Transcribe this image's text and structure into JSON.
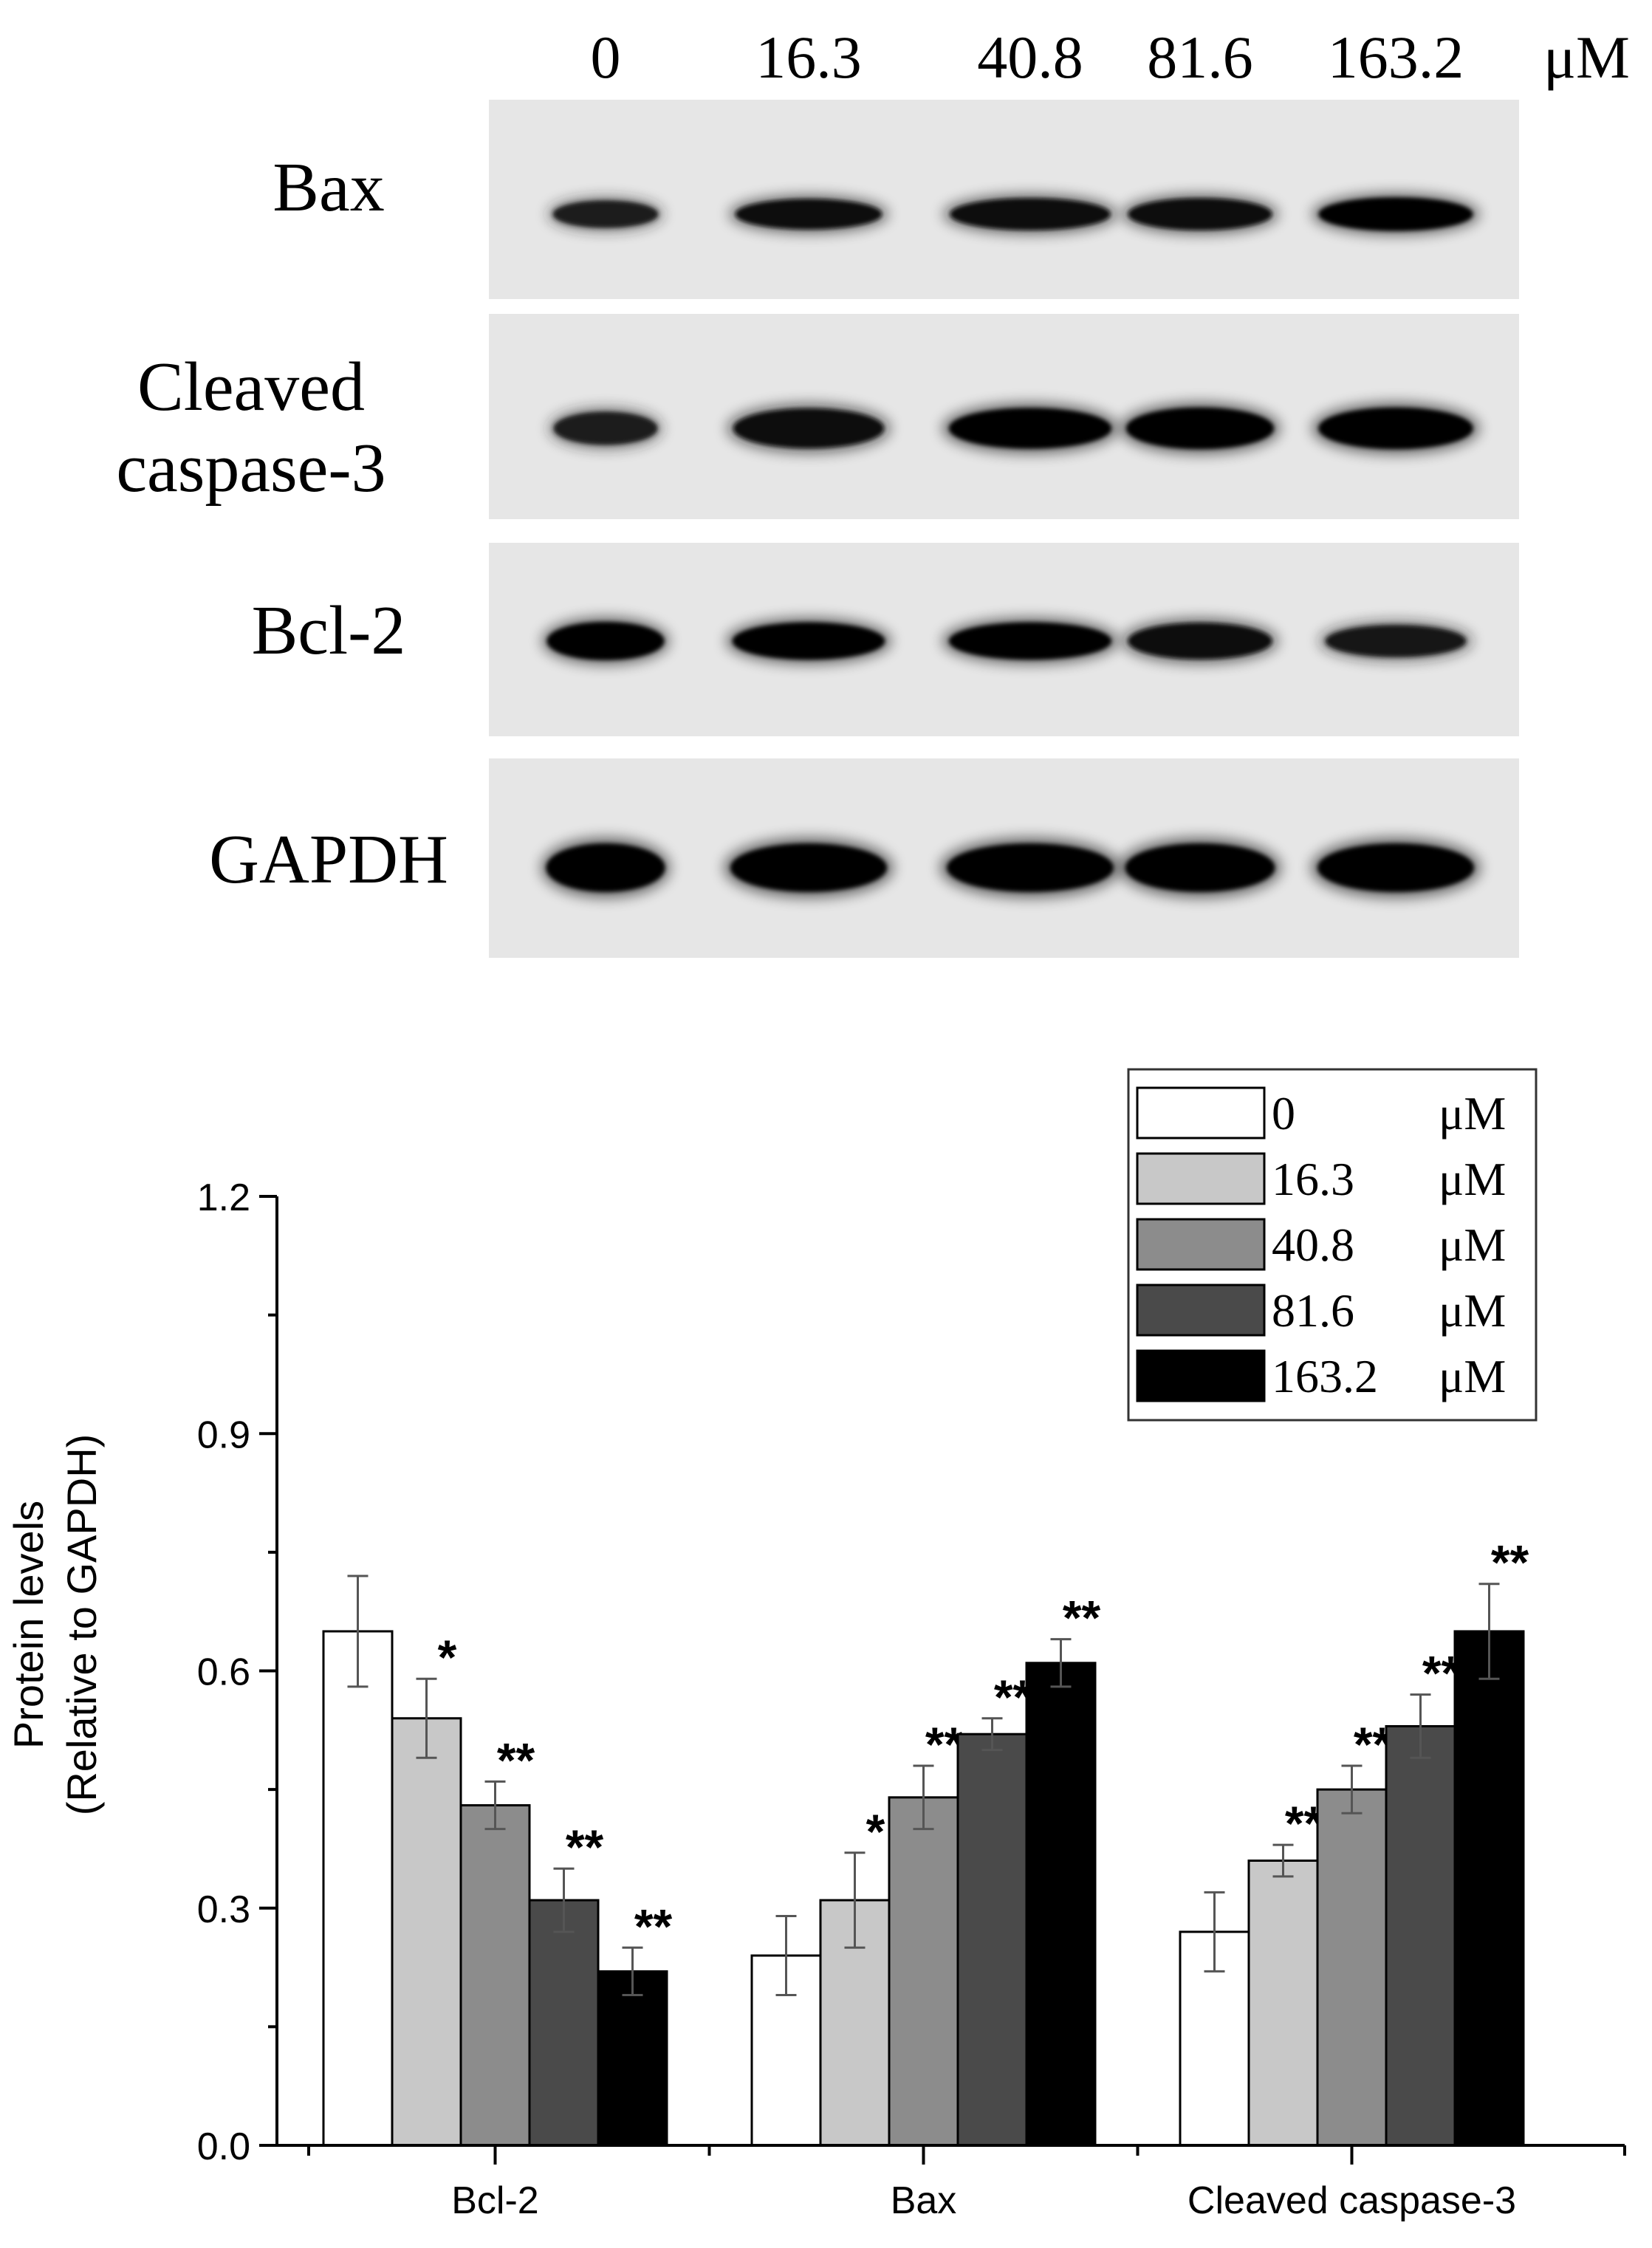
{
  "blot": {
    "doses": [
      "0",
      "16.3",
      "40.8",
      "81.6",
      "163.2"
    ],
    "unit": "μM",
    "rows": [
      {
        "label_lines": [
          "Bax"
        ],
        "band_intensity": [
          0.55,
          0.75,
          0.85,
          0.85,
          0.95
        ]
      },
      {
        "label_lines": [
          "Cleaved",
          "caspase-3"
        ],
        "band_intensity": [
          0.5,
          0.85,
          0.9,
          0.95,
          0.95
        ]
      },
      {
        "label_lines": [
          "Bcl-2"
        ],
        "band_intensity": [
          0.95,
          0.9,
          0.9,
          0.85,
          0.6
        ]
      },
      {
        "label_lines": [
          "GAPDH"
        ],
        "band_intensity": [
          1.0,
          1.0,
          1.0,
          1.0,
          1.0
        ]
      }
    ]
  },
  "chart_data": {
    "type": "bar",
    "title": "",
    "xlabel": "",
    "ylabel_lines": [
      "Protein levels",
      "(Relative to GAPDH)"
    ],
    "ylim": [
      0,
      1.2
    ],
    "yticks": [
      "0.0",
      "0.3",
      "0.6",
      "0.9",
      "1.2"
    ],
    "categories": [
      "Bcl-2",
      "Bax",
      "Cleaved caspase-3"
    ],
    "legend_position": "top-right",
    "grid": false,
    "series": [
      {
        "name": "0",
        "unit": "μM",
        "color": "#ffffff",
        "values": [
          0.65,
          0.24,
          0.27
        ],
        "errors": [
          0.07,
          0.05,
          0.05
        ],
        "significance": [
          "",
          "",
          ""
        ]
      },
      {
        "name": "16.3",
        "unit": "μM",
        "color": "#c8c8c8",
        "values": [
          0.54,
          0.31,
          0.36
        ],
        "errors": [
          0.05,
          0.06,
          0.02
        ],
        "significance": [
          "*",
          "*",
          "**"
        ]
      },
      {
        "name": "40.8",
        "unit": "μM",
        "color": "#8c8c8c",
        "values": [
          0.43,
          0.44,
          0.45
        ],
        "errors": [
          0.03,
          0.04,
          0.03
        ],
        "significance": [
          "**",
          "**",
          "**"
        ]
      },
      {
        "name": "81.6",
        "unit": "μM",
        "color": "#4a4a4a",
        "values": [
          0.31,
          0.52,
          0.53
        ],
        "errors": [
          0.04,
          0.02,
          0.04
        ],
        "significance": [
          "**",
          "**",
          "**"
        ]
      },
      {
        "name": "163.2",
        "unit": "μM",
        "color": "#000000",
        "values": [
          0.22,
          0.61,
          0.65
        ],
        "errors": [
          0.03,
          0.03,
          0.06
        ],
        "significance": [
          "**",
          "**",
          "**"
        ]
      }
    ]
  }
}
